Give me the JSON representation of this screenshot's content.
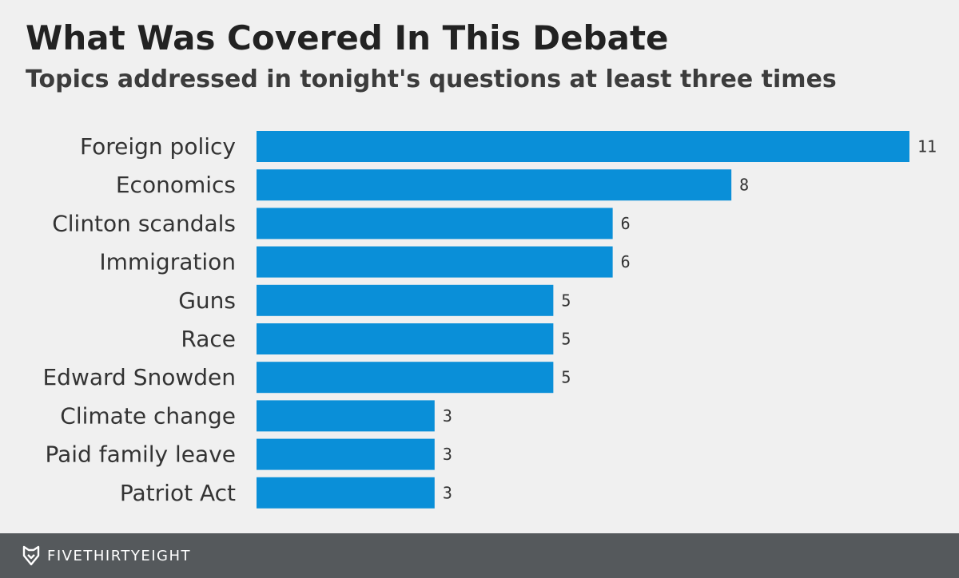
{
  "title": "What Was Covered In This Debate",
  "subtitle": "Topics addressed in tonight's questions at least three times",
  "colors": {
    "bar": "#0a8fd8",
    "background": "#f0f0f0",
    "footer": "#55595c"
  },
  "footer": {
    "brand": "FIVETHIRTYEIGHT",
    "logo_icon": "fox-head-icon"
  },
  "chart_data": {
    "type": "bar",
    "orientation": "horizontal",
    "categories": [
      "Foreign policy",
      "Economics",
      "Clinton scandals",
      "Immigration",
      "Guns",
      "Race",
      "Edward Snowden",
      "Climate change",
      "Paid family leave",
      "Patriot Act"
    ],
    "values": [
      11,
      8,
      6,
      6,
      5,
      5,
      5,
      3,
      3,
      3
    ],
    "xlim": [
      0,
      11
    ],
    "grid": false,
    "legend": "none",
    "data_labels": true
  }
}
